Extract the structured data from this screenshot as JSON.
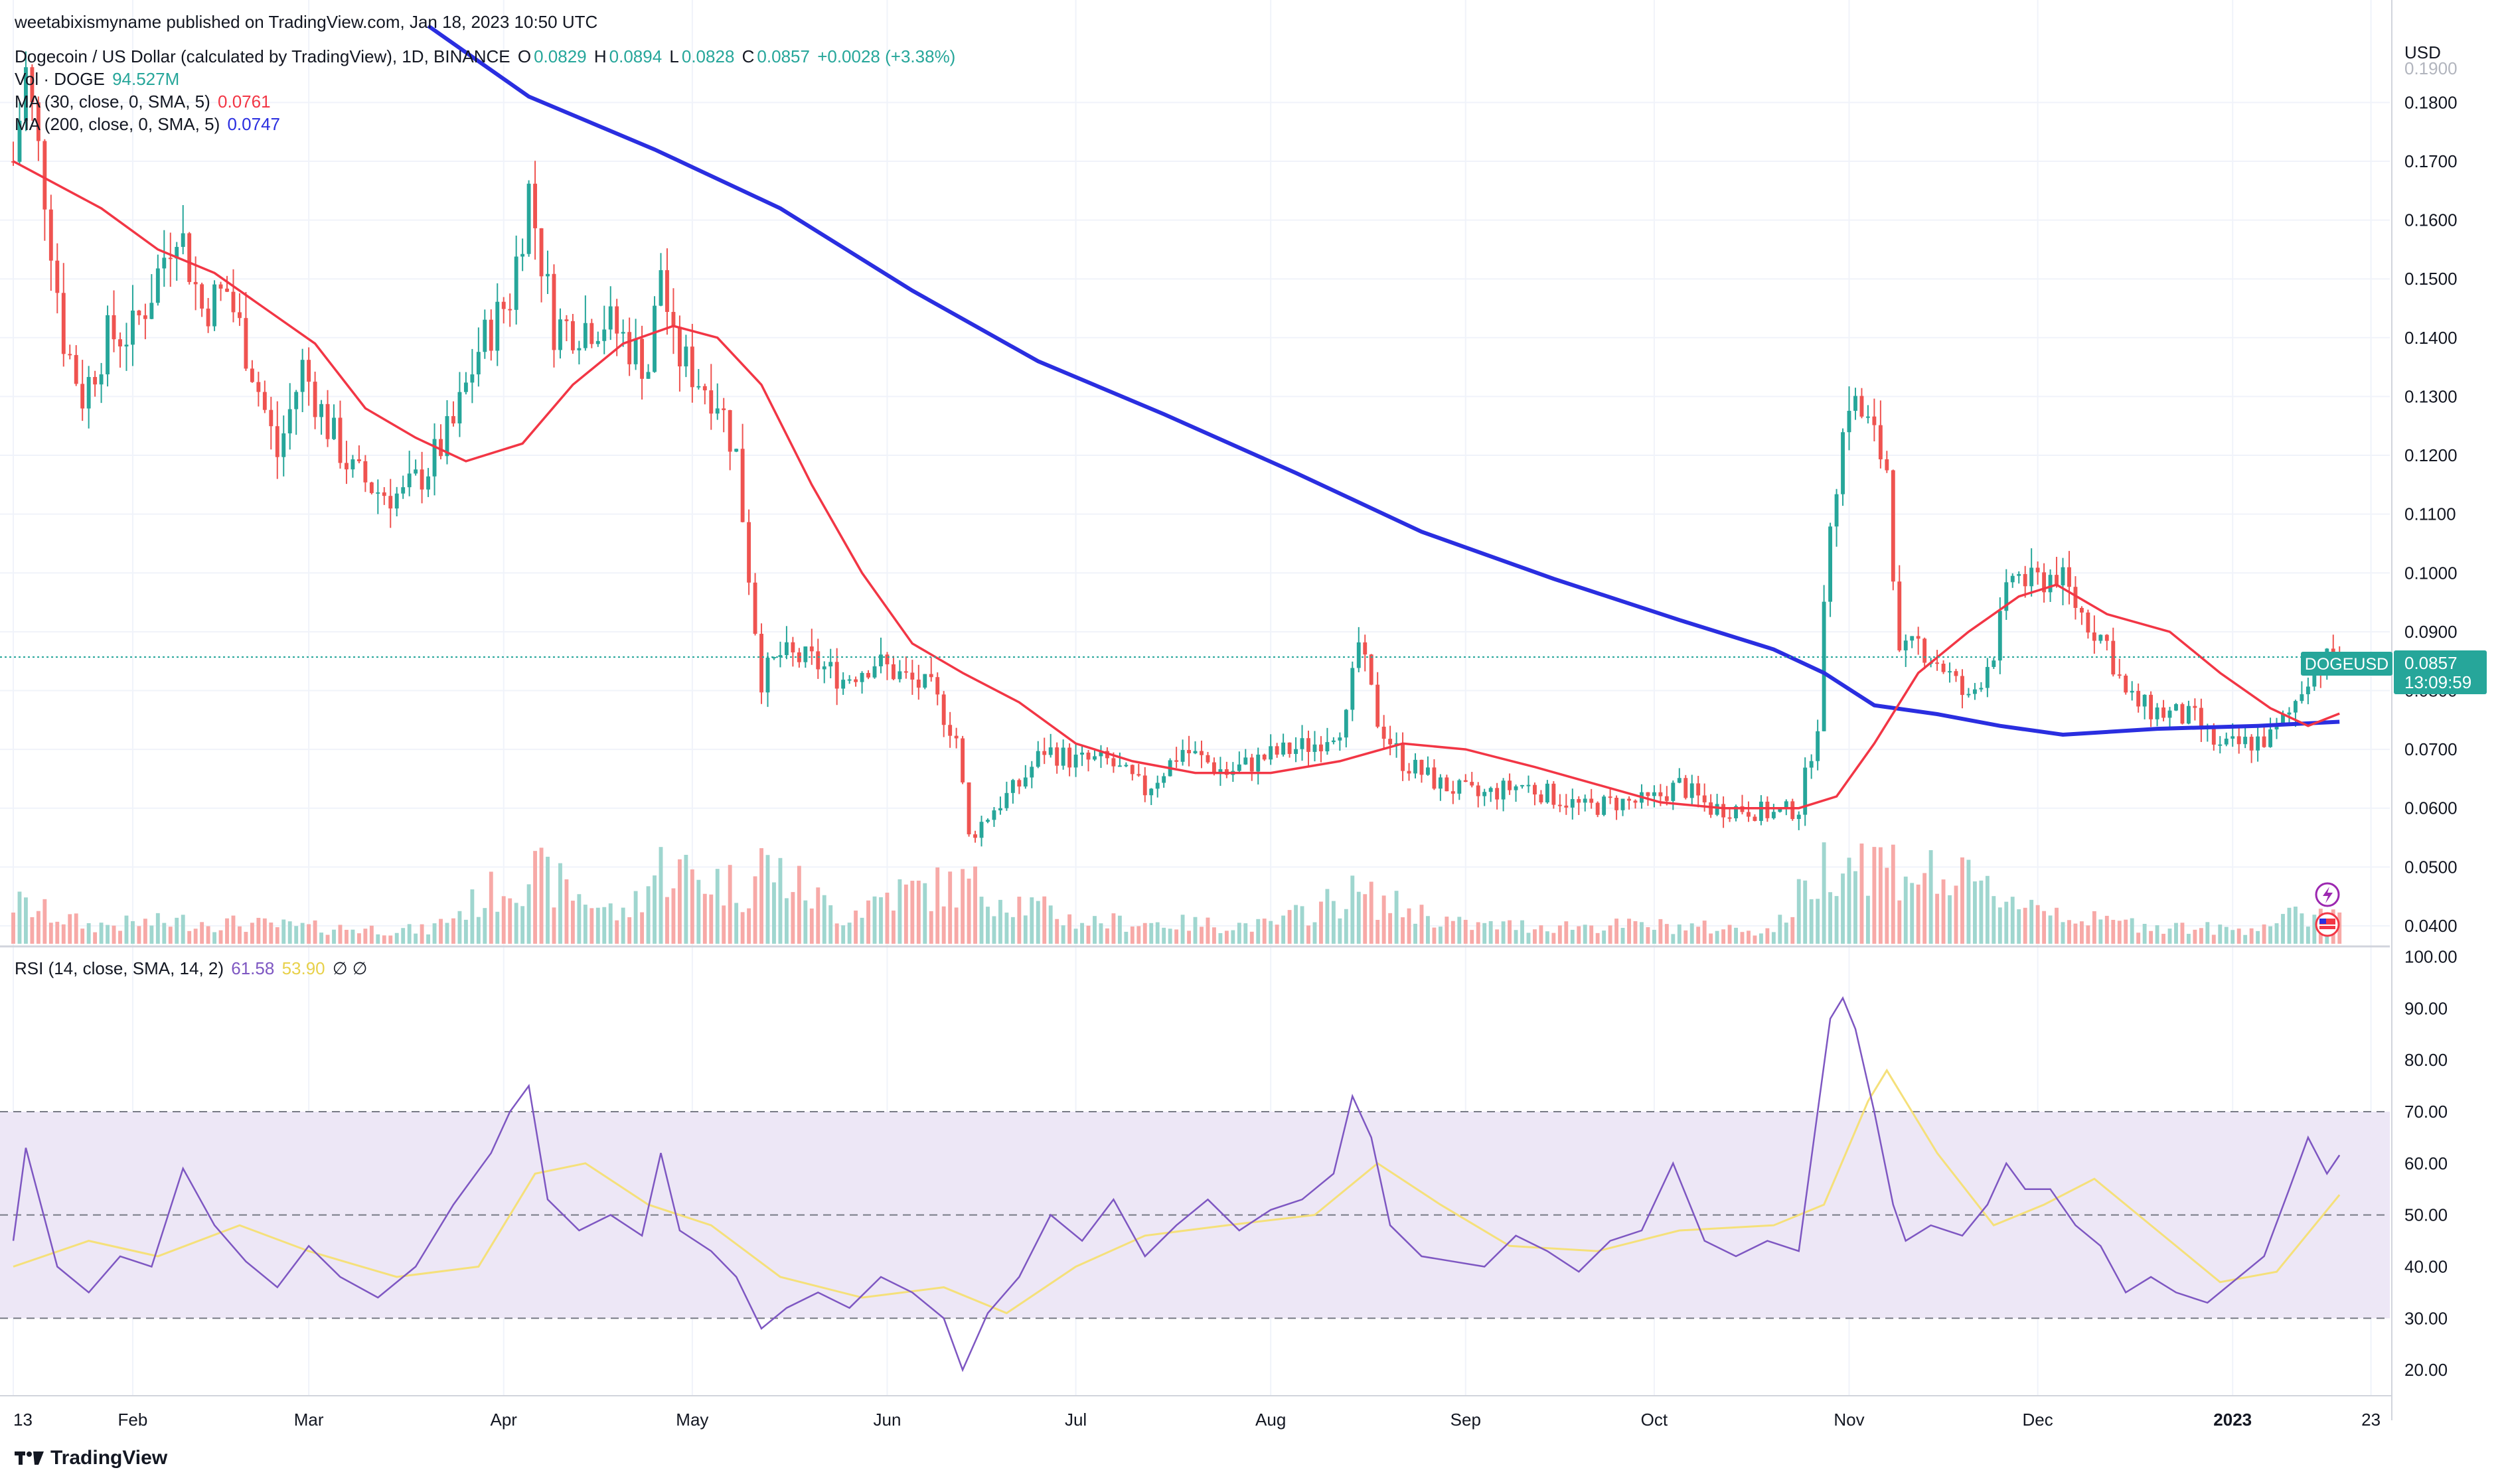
{
  "header": {
    "published": "weetabixismyname published on TradingView.com, Jan 18, 2023 10:50 UTC"
  },
  "legend": {
    "title": "Dogecoin / US Dollar (calculated by TradingView), 1D, BINANCE",
    "o_label": "O",
    "o_val": "0.0829",
    "h_label": "H",
    "h_val": "0.0894",
    "l_label": "L",
    "l_val": "0.0828",
    "c_label": "C",
    "c_val": "0.0857",
    "change": "+0.0028 (+3.38%)",
    "vol_label": "Vol · DOGE",
    "vol_val": "94.527M",
    "ma30_label": "MA (30, close, 0, SMA, 5)",
    "ma30_val": "0.0761",
    "ma200_label": "MA (200, close, 0, SMA, 5)",
    "ma200_val": "0.0747",
    "rsi_label": "RSI (14, close, SMA, 14, 2)",
    "rsi_val": "61.58",
    "rsi_ma_val": "53.90",
    "rsi_sym": "∅ ∅"
  },
  "price_axis": {
    "currency": "USD",
    "ticks": [
      "0.1800",
      "0.1700",
      "0.1600",
      "0.1500",
      "0.1400",
      "0.1300",
      "0.1200",
      "0.1100",
      "0.1000",
      "0.0900",
      "0.0800",
      "0.0700",
      "0.0600",
      "0.0500",
      "0.0400"
    ],
    "top_partial": "0.1900"
  },
  "rsi_axis": {
    "ticks": [
      "100.00",
      "90.00",
      "80.00",
      "70.00",
      "60.00",
      "50.00",
      "40.00",
      "30.00",
      "20.00"
    ]
  },
  "time_axis": {
    "labels": [
      "13",
      "Feb",
      "Mar",
      "Apr",
      "May",
      "Jun",
      "Jul",
      "Aug",
      "Sep",
      "Oct",
      "Nov",
      "Dec",
      "2023",
      "23"
    ]
  },
  "price_tag": {
    "symbol": "DOGEUSD",
    "price": "0.0857",
    "countdown": "13:09:59"
  },
  "footer": {
    "brand": "TradingView"
  },
  "colors": {
    "up": "#26a69a",
    "down": "#ef5350",
    "ma30": "#f23645",
    "ma200": "#2a2ee0",
    "rsi": "#7e57c2",
    "rsi_ma": "#f5e07a",
    "rsi_band": "#ede7f6"
  },
  "chart_data": {
    "type": "candlestick",
    "symbol": "DOGEUSD",
    "interval": "1D",
    "x_range": [
      "2022-01-13",
      "2023-01-18"
    ],
    "ylim": [
      0.0365,
      0.192
    ],
    "rsi_ylim": [
      15,
      102
    ],
    "rsi_bands": [
      30,
      50,
      70
    ],
    "last_close": 0.0857,
    "ma30_last": 0.0761,
    "ma200_last": 0.0747,
    "rsi_last": 61.58,
    "rsi_ma_last": 53.9,
    "close_path": [
      [
        "2022-01-13",
        0.17
      ],
      [
        "2022-01-15",
        0.185
      ],
      [
        "2022-01-18",
        0.165
      ],
      [
        "2022-01-21",
        0.14
      ],
      [
        "2022-01-24",
        0.13
      ],
      [
        "2022-01-28",
        0.14
      ],
      [
        "2022-02-01",
        0.141
      ],
      [
        "2022-02-04",
        0.148
      ],
      [
        "2022-02-08",
        0.16
      ],
      [
        "2022-02-12",
        0.145
      ],
      [
        "2022-02-16",
        0.148
      ],
      [
        "2022-02-20",
        0.135
      ],
      [
        "2022-02-24",
        0.12
      ],
      [
        "2022-02-28",
        0.135
      ],
      [
        "2022-03-04",
        0.125
      ],
      [
        "2022-03-08",
        0.117
      ],
      [
        "2022-03-12",
        0.114
      ],
      [
        "2022-03-16",
        0.113
      ],
      [
        "2022-03-20",
        0.118
      ],
      [
        "2022-03-24",
        0.125
      ],
      [
        "2022-03-28",
        0.138
      ],
      [
        "2022-04-02",
        0.147
      ],
      [
        "2022-04-05",
        0.165
      ],
      [
        "2022-04-09",
        0.142
      ],
      [
        "2022-04-13",
        0.142
      ],
      [
        "2022-04-17",
        0.143
      ],
      [
        "2022-04-20",
        0.14
      ],
      [
        "2022-04-24",
        0.135
      ],
      [
        "2022-04-26",
        0.152
      ],
      [
        "2022-04-28",
        0.138
      ],
      [
        "2022-05-02",
        0.133
      ],
      [
        "2022-05-05",
        0.13
      ],
      [
        "2022-05-08",
        0.12
      ],
      [
        "2022-05-10",
        0.1
      ],
      [
        "2022-05-12",
        0.082
      ],
      [
        "2022-05-15",
        0.086
      ],
      [
        "2022-05-20",
        0.085
      ],
      [
        "2022-05-25",
        0.082
      ],
      [
        "2022-05-30",
        0.085
      ],
      [
        "2022-06-04",
        0.082
      ],
      [
        "2022-06-08",
        0.08
      ],
      [
        "2022-06-12",
        0.072
      ],
      [
        "2022-06-14",
        0.055
      ],
      [
        "2022-06-18",
        0.06
      ],
      [
        "2022-06-22",
        0.064
      ],
      [
        "2022-06-26",
        0.07
      ],
      [
        "2022-07-01",
        0.068
      ],
      [
        "2022-07-06",
        0.068
      ],
      [
        "2022-07-12",
        0.063
      ],
      [
        "2022-07-18",
        0.07
      ],
      [
        "2022-07-25",
        0.066
      ],
      [
        "2022-08-01",
        0.069
      ],
      [
        "2022-08-08",
        0.071
      ],
      [
        "2022-08-13",
        0.075
      ],
      [
        "2022-08-15",
        0.088
      ],
      [
        "2022-08-18",
        0.075
      ],
      [
        "2022-08-22",
        0.068
      ],
      [
        "2022-08-28",
        0.064
      ],
      [
        "2022-09-03",
        0.062
      ],
      [
        "2022-09-10",
        0.064
      ],
      [
        "2022-09-15",
        0.062
      ],
      [
        "2022-09-20",
        0.06
      ],
      [
        "2022-09-25",
        0.061
      ],
      [
        "2022-09-30",
        0.061
      ],
      [
        "2022-10-05",
        0.064
      ],
      [
        "2022-10-10",
        0.06
      ],
      [
        "2022-10-15",
        0.06
      ],
      [
        "2022-10-20",
        0.059
      ],
      [
        "2022-10-24",
        0.06
      ],
      [
        "2022-10-27",
        0.075
      ],
      [
        "2022-10-29",
        0.11
      ],
      [
        "2022-11-01",
        0.13
      ],
      [
        "2022-11-04",
        0.125
      ],
      [
        "2022-11-07",
        0.118
      ],
      [
        "2022-11-09",
        0.085
      ],
      [
        "2022-11-12",
        0.088
      ],
      [
        "2022-11-16",
        0.084
      ],
      [
        "2022-11-20",
        0.078
      ],
      [
        "2022-11-24",
        0.087
      ],
      [
        "2022-11-27",
        0.1
      ],
      [
        "2022-11-30",
        0.098
      ],
      [
        "2022-12-04",
        0.1
      ],
      [
        "2022-12-08",
        0.093
      ],
      [
        "2022-12-12",
        0.088
      ],
      [
        "2022-12-15",
        0.079
      ],
      [
        "2022-12-18",
        0.077
      ],
      [
        "2022-12-22",
        0.076
      ],
      [
        "2022-12-26",
        0.075
      ],
      [
        "2022-12-30",
        0.07
      ],
      [
        "2023-01-03",
        0.071
      ],
      [
        "2023-01-07",
        0.072
      ],
      [
        "2023-01-10",
        0.076
      ],
      [
        "2023-01-13",
        0.083
      ],
      [
        "2023-01-16",
        0.085
      ],
      [
        "2023-01-18",
        0.0857
      ]
    ],
    "ma30_path": [
      [
        "2022-01-13",
        0.17
      ],
      [
        "2022-01-20",
        0.166
      ],
      [
        "2022-01-27",
        0.162
      ],
      [
        "2022-02-05",
        0.155
      ],
      [
        "2022-02-14",
        0.151
      ],
      [
        "2022-02-22",
        0.145
      ],
      [
        "2022-03-02",
        0.139
      ],
      [
        "2022-03-10",
        0.128
      ],
      [
        "2022-03-18",
        0.123
      ],
      [
        "2022-03-26",
        0.119
      ],
      [
        "2022-04-04",
        0.122
      ],
      [
        "2022-04-12",
        0.132
      ],
      [
        "2022-04-20",
        0.139
      ],
      [
        "2022-04-28",
        0.142
      ],
      [
        "2022-05-05",
        0.14
      ],
      [
        "2022-05-12",
        0.132
      ],
      [
        "2022-05-20",
        0.115
      ],
      [
        "2022-05-28",
        0.1
      ],
      [
        "2022-06-05",
        0.088
      ],
      [
        "2022-06-13",
        0.083
      ],
      [
        "2022-06-22",
        0.078
      ],
      [
        "2022-07-01",
        0.071
      ],
      [
        "2022-07-10",
        0.068
      ],
      [
        "2022-07-20",
        0.066
      ],
      [
        "2022-08-01",
        0.066
      ],
      [
        "2022-08-12",
        0.068
      ],
      [
        "2022-08-22",
        0.071
      ],
      [
        "2022-09-01",
        0.07
      ],
      [
        "2022-09-12",
        0.067
      ],
      [
        "2022-09-22",
        0.064
      ],
      [
        "2022-10-02",
        0.061
      ],
      [
        "2022-10-12",
        0.06
      ],
      [
        "2022-10-24",
        0.06
      ],
      [
        "2022-10-30",
        0.062
      ],
      [
        "2022-11-05",
        0.071
      ],
      [
        "2022-11-12",
        0.083
      ],
      [
        "2022-11-20",
        0.09
      ],
      [
        "2022-11-28",
        0.096
      ],
      [
        "2022-12-04",
        0.098
      ],
      [
        "2022-12-12",
        0.093
      ],
      [
        "2022-12-22",
        0.09
      ],
      [
        "2022-12-30",
        0.083
      ],
      [
        "2023-01-07",
        0.077
      ],
      [
        "2023-01-13",
        0.074
      ],
      [
        "2023-01-18",
        0.0761
      ]
    ],
    "ma200_path": [
      [
        "2022-03-20",
        0.193
      ],
      [
        "2022-04-05",
        0.181
      ],
      [
        "2022-04-25",
        0.172
      ],
      [
        "2022-05-15",
        0.162
      ],
      [
        "2022-06-05",
        0.148
      ],
      [
        "2022-06-25",
        0.136
      ],
      [
        "2022-07-15",
        0.127
      ],
      [
        "2022-08-05",
        0.117
      ],
      [
        "2022-08-25",
        0.107
      ],
      [
        "2022-09-15",
        0.099
      ],
      [
        "2022-10-05",
        0.092
      ],
      [
        "2022-10-20",
        0.087
      ],
      [
        "2022-10-28",
        0.083
      ],
      [
        "2022-11-05",
        0.0775
      ],
      [
        "2022-11-15",
        0.076
      ],
      [
        "2022-11-25",
        0.074
      ],
      [
        "2022-12-05",
        0.0725
      ],
      [
        "2022-12-20",
        0.0735
      ],
      [
        "2023-01-05",
        0.074
      ],
      [
        "2023-01-18",
        0.0747
      ]
    ],
    "rsi_path": [
      [
        "2022-01-13",
        45
      ],
      [
        "2022-01-15",
        63
      ],
      [
        "2022-01-20",
        40
      ],
      [
        "2022-01-25",
        35
      ],
      [
        "2022-01-30",
        42
      ],
      [
        "2022-02-04",
        40
      ],
      [
        "2022-02-09",
        59
      ],
      [
        "2022-02-14",
        48
      ],
      [
        "2022-02-19",
        41
      ],
      [
        "2022-02-24",
        36
      ],
      [
        "2022-03-01",
        44
      ],
      [
        "2022-03-06",
        38
      ],
      [
        "2022-03-12",
        34
      ],
      [
        "2022-03-18",
        40
      ],
      [
        "2022-03-24",
        52
      ],
      [
        "2022-03-30",
        62
      ],
      [
        "2022-04-02",
        70
      ],
      [
        "2022-04-05",
        75
      ],
      [
        "2022-04-08",
        53
      ],
      [
        "2022-04-13",
        47
      ],
      [
        "2022-04-18",
        50
      ],
      [
        "2022-04-23",
        46
      ],
      [
        "2022-04-26",
        62
      ],
      [
        "2022-04-29",
        47
      ],
      [
        "2022-05-04",
        43
      ],
      [
        "2022-05-08",
        38
      ],
      [
        "2022-05-12",
        28
      ],
      [
        "2022-05-16",
        32
      ],
      [
        "2022-05-21",
        35
      ],
      [
        "2022-05-26",
        32
      ],
      [
        "2022-05-31",
        38
      ],
      [
        "2022-06-05",
        35
      ],
      [
        "2022-06-10",
        30
      ],
      [
        "2022-06-13",
        20
      ],
      [
        "2022-06-17",
        31
      ],
      [
        "2022-06-22",
        38
      ],
      [
        "2022-06-27",
        50
      ],
      [
        "2022-07-02",
        45
      ],
      [
        "2022-07-07",
        53
      ],
      [
        "2022-07-12",
        42
      ],
      [
        "2022-07-17",
        48
      ],
      [
        "2022-07-22",
        53
      ],
      [
        "2022-07-27",
        47
      ],
      [
        "2022-08-01",
        51
      ],
      [
        "2022-08-06",
        53
      ],
      [
        "2022-08-11",
        58
      ],
      [
        "2022-08-14",
        73
      ],
      [
        "2022-08-17",
        65
      ],
      [
        "2022-08-20",
        48
      ],
      [
        "2022-08-25",
        42
      ],
      [
        "2022-08-30",
        41
      ],
      [
        "2022-09-04",
        40
      ],
      [
        "2022-09-09",
        46
      ],
      [
        "2022-09-14",
        43
      ],
      [
        "2022-09-19",
        39
      ],
      [
        "2022-09-24",
        45
      ],
      [
        "2022-09-29",
        47
      ],
      [
        "2022-10-04",
        60
      ],
      [
        "2022-10-09",
        45
      ],
      [
        "2022-10-14",
        42
      ],
      [
        "2022-10-19",
        45
      ],
      [
        "2022-10-24",
        43
      ],
      [
        "2022-10-27",
        70
      ],
      [
        "2022-10-29",
        88
      ],
      [
        "2022-10-31",
        92
      ],
      [
        "2022-11-02",
        86
      ],
      [
        "2022-11-05",
        70
      ],
      [
        "2022-11-08",
        52
      ],
      [
        "2022-11-10",
        45
      ],
      [
        "2022-11-14",
        48
      ],
      [
        "2022-11-19",
        46
      ],
      [
        "2022-11-23",
        52
      ],
      [
        "2022-11-26",
        60
      ],
      [
        "2022-11-29",
        55
      ],
      [
        "2022-12-03",
        55
      ],
      [
        "2022-12-07",
        48
      ],
      [
        "2022-12-11",
        44
      ],
      [
        "2022-12-15",
        35
      ],
      [
        "2022-12-19",
        38
      ],
      [
        "2022-12-23",
        35
      ],
      [
        "2022-12-28",
        33
      ],
      [
        "2023-01-02",
        38
      ],
      [
        "2023-01-06",
        42
      ],
      [
        "2023-01-10",
        55
      ],
      [
        "2023-01-13",
        65
      ],
      [
        "2023-01-16",
        58
      ],
      [
        "2023-01-18",
        61.58
      ]
    ],
    "rsi_ma_path": [
      [
        "2022-01-13",
        40
      ],
      [
        "2022-01-25",
        45
      ],
      [
        "2022-02-05",
        42
      ],
      [
        "2022-02-18",
        48
      ],
      [
        "2022-03-01",
        43
      ],
      [
        "2022-03-15",
        38
      ],
      [
        "2022-03-28",
        40
      ],
      [
        "2022-04-06",
        58
      ],
      [
        "2022-04-14",
        60
      ],
      [
        "2022-04-24",
        52
      ],
      [
        "2022-05-04",
        48
      ],
      [
        "2022-05-15",
        38
      ],
      [
        "2022-05-28",
        34
      ],
      [
        "2022-06-10",
        36
      ],
      [
        "2022-06-20",
        31
      ],
      [
        "2022-07-01",
        40
      ],
      [
        "2022-07-12",
        46
      ],
      [
        "2022-07-25",
        48
      ],
      [
        "2022-08-08",
        50
      ],
      [
        "2022-08-18",
        60
      ],
      [
        "2022-08-28",
        52
      ],
      [
        "2022-09-08",
        44
      ],
      [
        "2022-09-22",
        43
      ],
      [
        "2022-10-05",
        47
      ],
      [
        "2022-10-20",
        48
      ],
      [
        "2022-10-28",
        52
      ],
      [
        "2022-11-04",
        72
      ],
      [
        "2022-11-07",
        78
      ],
      [
        "2022-11-15",
        62
      ],
      [
        "2022-11-24",
        48
      ],
      [
        "2022-12-02",
        52
      ],
      [
        "2022-12-10",
        57
      ],
      [
        "2022-12-20",
        47
      ],
      [
        "2022-12-30",
        37
      ],
      [
        "2023-01-08",
        39
      ],
      [
        "2023-01-18",
        53.9
      ]
    ],
    "volume_path": [
      [
        "2022-01-13",
        0.45
      ],
      [
        "2022-01-25",
        0.2
      ],
      [
        "2022-02-10",
        0.25
      ],
      [
        "2022-03-01",
        0.18
      ],
      [
        "2022-03-20",
        0.15
      ],
      [
        "2022-04-05",
        0.8
      ],
      [
        "2022-04-20",
        0.3
      ],
      [
        "2022-04-26",
        0.85
      ],
      [
        "2022-05-10",
        0.6
      ],
      [
        "2022-05-12",
        0.9
      ],
      [
        "2022-05-25",
        0.3
      ],
      [
        "2022-06-01",
        0.55
      ],
      [
        "2022-06-14",
        0.65
      ],
      [
        "2022-07-01",
        0.25
      ],
      [
        "2022-08-01",
        0.2
      ],
      [
        "2022-08-14",
        0.55
      ],
      [
        "2022-09-01",
        0.2
      ],
      [
        "2022-10-01",
        0.2
      ],
      [
        "2022-10-20",
        0.15
      ],
      [
        "2022-10-29",
        0.95
      ],
      [
        "2022-11-01",
        1.0
      ],
      [
        "2022-11-09",
        0.85
      ],
      [
        "2022-11-25",
        0.55
      ],
      [
        "2022-12-10",
        0.25
      ],
      [
        "2023-01-01",
        0.15
      ],
      [
        "2023-01-15",
        0.35
      ]
    ]
  }
}
